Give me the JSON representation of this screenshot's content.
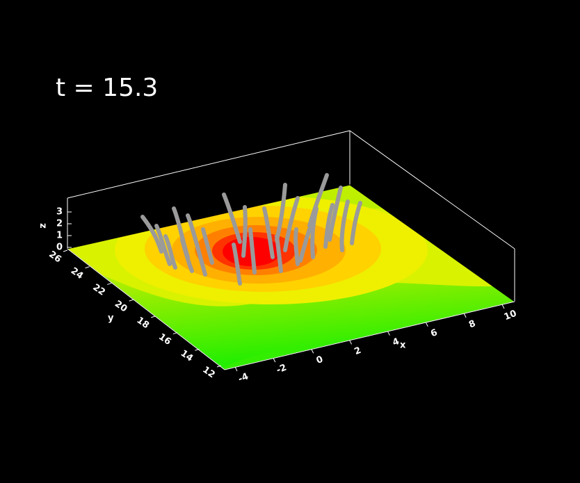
{
  "title": "t = 15.3",
  "axes": {
    "x": {
      "label": "x",
      "ticks": [
        -4,
        -2,
        0,
        2,
        4,
        6,
        8,
        10
      ]
    },
    "y": {
      "label": "y",
      "ticks": [
        26,
        24,
        22,
        20,
        18,
        16,
        14,
        12
      ]
    },
    "z": {
      "label": "z",
      "ticks": [
        0,
        1,
        2,
        3
      ]
    }
  }
}
